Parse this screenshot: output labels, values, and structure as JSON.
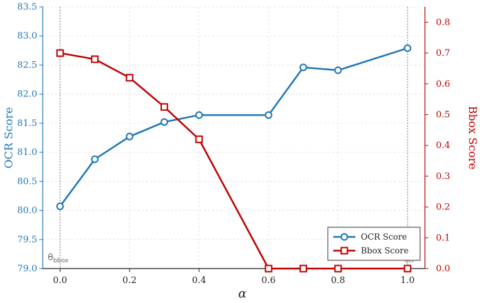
{
  "chart_data": {
    "type": "line",
    "xlabel": "α",
    "ylabel_left": "OCR Score",
    "ylabel_right": "Bbox Score",
    "x": [
      0.0,
      0.1,
      0.2,
      0.3,
      0.4,
      0.6,
      0.7,
      0.8,
      1.0
    ],
    "xticks": [
      "0.0",
      "0.2",
      "0.4",
      "0.6",
      "0.8",
      "1.0"
    ],
    "xlim": [
      -0.05,
      1.05
    ],
    "ylim_left": [
      79.0,
      83.5
    ],
    "yticks_left": [
      "79.0",
      "79.5",
      "80.0",
      "80.5",
      "81.0",
      "81.5",
      "82.0",
      "82.5",
      "83.0",
      "83.5"
    ],
    "ylim_right": [
      0.0,
      0.85
    ],
    "yticks_right": [
      "0.0",
      "0.1",
      "0.2",
      "0.3",
      "0.4",
      "0.5",
      "0.6",
      "0.7",
      "0.8"
    ],
    "grid": true,
    "legend_position": "bottom-right",
    "series": [
      {
        "name": "OCR Score",
        "axis": "left",
        "marker": "circle",
        "color": "#1f77b4",
        "values": [
          80.07,
          80.88,
          81.27,
          81.52,
          81.64,
          81.64,
          82.46,
          82.41,
          82.79
        ]
      },
      {
        "name": "Bbox Score",
        "axis": "right",
        "marker": "square",
        "color": "#c00000",
        "values": [
          0.7,
          0.68,
          0.62,
          0.525,
          0.42,
          0.0,
          0.0,
          0.0,
          0.0
        ]
      }
    ],
    "annotations": [
      {
        "base": "θ",
        "sub": "bbox",
        "x": 0.0
      },
      {
        "base": "θ",
        "sub": "ocr",
        "x": 1.0
      }
    ]
  }
}
